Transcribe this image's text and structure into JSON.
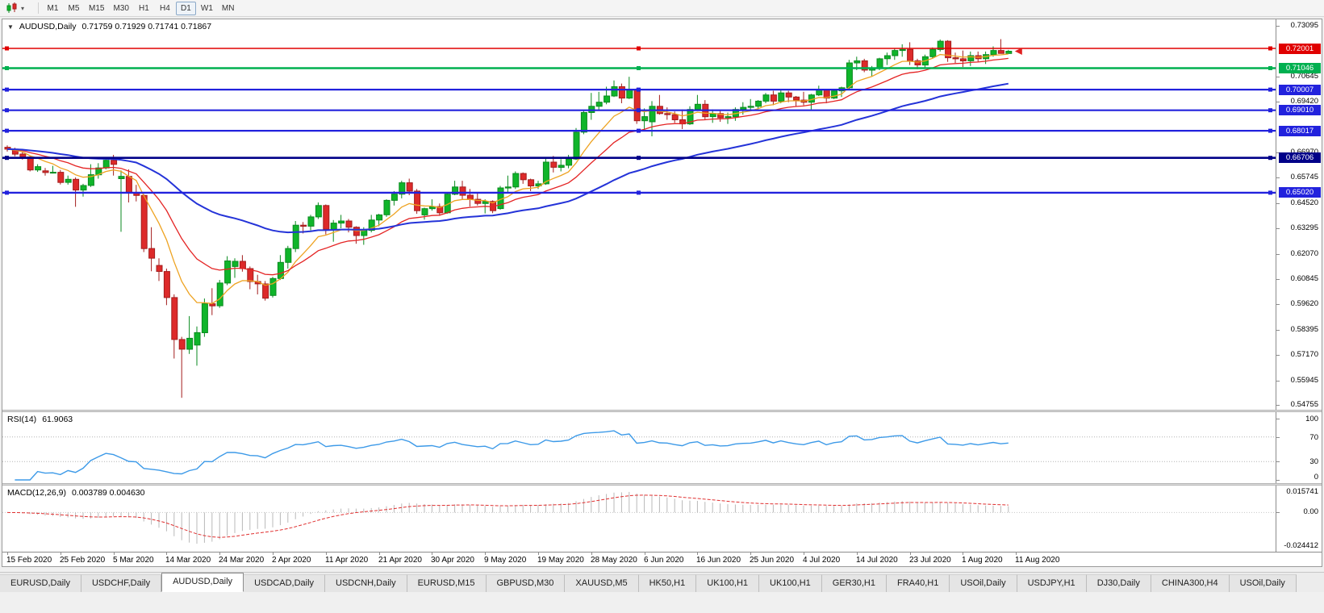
{
  "toolbar": {
    "timeframes": [
      "M1",
      "M5",
      "M15",
      "M30",
      "H1",
      "H4",
      "D1",
      "W1",
      "MN"
    ],
    "active_timeframe": "D1"
  },
  "chart": {
    "title": "AUDUSD,Daily",
    "ohlc_text": "0.71759  0.71929  0.71741  0.71867",
    "open": "0.71759",
    "high": "0.71929",
    "low": "0.71741",
    "close": "0.71867"
  },
  "price_axis": {
    "ticks": [
      "0.73095",
      "0.70645",
      "0.69420",
      "0.66970",
      "0.65745",
      "0.64520",
      "0.63295",
      "0.62070",
      "0.60845",
      "0.59620",
      "0.58395",
      "0.57170",
      "0.55945",
      "0.54755"
    ]
  },
  "chart_data": {
    "type": "candlestick",
    "symbol": "AUDUSD",
    "period": "Daily",
    "ylim": [
      0.54755,
      0.73095
    ],
    "x_label_every": 7,
    "x_labels": [
      "15 Feb 2020",
      "25 Feb 2020",
      "5 Mar 2020",
      "14 Mar 2020",
      "24 Mar 2020",
      "2 Apr 2020",
      "11 Apr 2020",
      "21 Apr 2020",
      "30 Apr 2020",
      "9 May 2020",
      "19 May 2020",
      "28 May 2020",
      "6 Jun 2020",
      "16 Jun 2020",
      "25 Jun 2020",
      "4 Jul 2020",
      "14 Jul 2020",
      "23 Jul 2020",
      "1 Aug 2020",
      "11 Aug 2020"
    ],
    "colors": {
      "up": "#0fb52a",
      "up_stroke": "#0a8a1f",
      "down": "#dd2a2a",
      "down_stroke": "#a31d1d"
    },
    "moving_averages": [
      {
        "period": 8,
        "color": "#eea322",
        "width": 1.3
      },
      {
        "period": 17,
        "color": "#e42424",
        "width": 1.3
      },
      {
        "period": 48,
        "color": "#2433d8",
        "width": 2
      }
    ],
    "horizontal_lines": [
      {
        "price": 0.72001,
        "label": "0.72001",
        "color": "#e00000",
        "width": 1.4
      },
      {
        "price": 0.71046,
        "label": "0.71046",
        "color": "#00b050",
        "width": 2.4
      },
      {
        "price": 0.70007,
        "label": "0.70007",
        "color": "#2222dd",
        "width": 2.2
      },
      {
        "price": 0.6901,
        "label": "0.69010",
        "color": "#2222dd",
        "width": 2.2
      },
      {
        "price": 0.68017,
        "label": "0.68017",
        "color": "#2222dd",
        "width": 2.2
      },
      {
        "price": 0.66706,
        "label": "0.66706",
        "color": "#000088",
        "width": 2.6
      },
      {
        "price": 0.6502,
        "label": "0.65020",
        "color": "#2222dd",
        "width": 2.4
      }
    ],
    "price_marker": {
      "price": 0.71867,
      "color": "#e02020"
    },
    "ohlc": [
      [
        0.6722,
        0.6731,
        0.6701,
        0.6713
      ],
      [
        0.6713,
        0.672,
        0.6678,
        0.6689
      ],
      [
        0.6689,
        0.67,
        0.6662,
        0.6675
      ],
      [
        0.6675,
        0.6678,
        0.6605,
        0.6612
      ],
      [
        0.6612,
        0.664,
        0.6603,
        0.6628
      ],
      [
        0.6608,
        0.6622,
        0.6585,
        0.66
      ],
      [
        0.66,
        0.6632,
        0.6595,
        0.6601
      ],
      [
        0.6601,
        0.6612,
        0.6542,
        0.6552
      ],
      [
        0.6552,
        0.6585,
        0.6541,
        0.6567
      ],
      [
        0.6567,
        0.6576,
        0.6434,
        0.6515
      ],
      [
        0.6515,
        0.6545,
        0.6483,
        0.6537
      ],
      [
        0.6537,
        0.664,
        0.653,
        0.6589
      ],
      [
        0.6589,
        0.6645,
        0.657,
        0.6622
      ],
      [
        0.6622,
        0.667,
        0.6615,
        0.6659
      ],
      [
        0.6659,
        0.6685,
        0.6585,
        0.6639
      ],
      [
        0.657,
        0.661,
        0.6313,
        0.6581
      ],
      [
        0.6581,
        0.6615,
        0.6455,
        0.6501
      ],
      [
        0.6501,
        0.654,
        0.646,
        0.6489
      ],
      [
        0.6489,
        0.6495,
        0.6215,
        0.6232
      ],
      [
        0.6232,
        0.6335,
        0.6122,
        0.6185
      ],
      [
        0.615,
        0.6185,
        0.6075,
        0.6121
      ],
      [
        0.6121,
        0.6135,
        0.5958,
        0.5995
      ],
      [
        0.5995,
        0.601,
        0.57,
        0.5792
      ],
      [
        0.5792,
        0.5805,
        0.551,
        0.5745
      ],
      [
        0.5745,
        0.5905,
        0.5722,
        0.5798
      ],
      [
        0.5765,
        0.5855,
        0.5665,
        0.5825
      ],
      [
        0.5825,
        0.599,
        0.5805,
        0.5965
      ],
      [
        0.5965,
        0.604,
        0.591,
        0.5955
      ],
      [
        0.5955,
        0.608,
        0.5945,
        0.6065
      ],
      [
        0.6065,
        0.6195,
        0.6055,
        0.6172
      ],
      [
        0.6145,
        0.6185,
        0.609,
        0.617
      ],
      [
        0.617,
        0.62,
        0.612,
        0.6135
      ],
      [
        0.6135,
        0.6145,
        0.6035,
        0.6072
      ],
      [
        0.6072,
        0.6105,
        0.601,
        0.6061
      ],
      [
        0.6061,
        0.6075,
        0.598,
        0.5992
      ],
      [
        0.6005,
        0.6095,
        0.5995,
        0.6087
      ],
      [
        0.6087,
        0.62,
        0.608,
        0.6165
      ],
      [
        0.6165,
        0.6245,
        0.6135,
        0.6232
      ],
      [
        0.6232,
        0.6365,
        0.6215,
        0.6345
      ],
      [
        0.6345,
        0.636,
        0.6305,
        0.634
      ],
      [
        0.634,
        0.6395,
        0.632,
        0.6385
      ],
      [
        0.6385,
        0.6455,
        0.6375,
        0.644
      ],
      [
        0.644,
        0.6445,
        0.63,
        0.6325
      ],
      [
        0.6325,
        0.637,
        0.6265,
        0.6355
      ],
      [
        0.6355,
        0.6395,
        0.633,
        0.6365
      ],
      [
        0.6365,
        0.6375,
        0.631,
        0.6335
      ],
      [
        0.6335,
        0.634,
        0.6255,
        0.6295
      ],
      [
        0.6295,
        0.6335,
        0.625,
        0.632
      ],
      [
        0.632,
        0.6395,
        0.631,
        0.637
      ],
      [
        0.637,
        0.64,
        0.634,
        0.6395
      ],
      [
        0.6395,
        0.647,
        0.6385,
        0.6465
      ],
      [
        0.6465,
        0.651,
        0.644,
        0.6495
      ],
      [
        0.6495,
        0.656,
        0.6475,
        0.655
      ],
      [
        0.655,
        0.657,
        0.649,
        0.651
      ],
      [
        0.651,
        0.652,
        0.64,
        0.6415
      ],
      [
        0.6395,
        0.643,
        0.6372,
        0.6425
      ],
      [
        0.6425,
        0.647,
        0.6415,
        0.6435
      ],
      [
        0.6435,
        0.645,
        0.639,
        0.6405
      ],
      [
        0.6405,
        0.6505,
        0.64,
        0.6495
      ],
      [
        0.6495,
        0.656,
        0.649,
        0.653
      ],
      [
        0.653,
        0.656,
        0.647,
        0.649
      ],
      [
        0.649,
        0.652,
        0.6435,
        0.647
      ],
      [
        0.647,
        0.65,
        0.644,
        0.645
      ],
      [
        0.645,
        0.647,
        0.6402,
        0.646
      ],
      [
        0.646,
        0.6465,
        0.6403,
        0.6415
      ],
      [
        0.6425,
        0.6535,
        0.642,
        0.6525
      ],
      [
        0.6525,
        0.6585,
        0.6505,
        0.653
      ],
      [
        0.653,
        0.6605,
        0.652,
        0.6595
      ],
      [
        0.6595,
        0.66,
        0.6545,
        0.6565
      ],
      [
        0.6565,
        0.657,
        0.651,
        0.6535
      ],
      [
        0.6535,
        0.656,
        0.652,
        0.6545
      ],
      [
        0.6545,
        0.6675,
        0.654,
        0.665
      ],
      [
        0.665,
        0.668,
        0.66,
        0.6625
      ],
      [
        0.6625,
        0.6665,
        0.6605,
        0.6635
      ],
      [
        0.6635,
        0.6685,
        0.662,
        0.6665
      ],
      [
        0.6665,
        0.6815,
        0.666,
        0.6795
      ],
      [
        0.6795,
        0.69,
        0.6785,
        0.689
      ],
      [
        0.689,
        0.6985,
        0.6855,
        0.692
      ],
      [
        0.692,
        0.699,
        0.69,
        0.694
      ],
      [
        0.694,
        0.7015,
        0.693,
        0.697
      ],
      [
        0.697,
        0.7045,
        0.6965,
        0.7015
      ],
      [
        0.7015,
        0.703,
        0.6935,
        0.696
      ],
      [
        0.696,
        0.7063,
        0.6955,
        0.7
      ],
      [
        0.7,
        0.701,
        0.6835,
        0.685
      ],
      [
        0.685,
        0.691,
        0.68,
        0.687
      ],
      [
        0.6845,
        0.6945,
        0.6775,
        0.692
      ],
      [
        0.692,
        0.6975,
        0.688,
        0.6885
      ],
      [
        0.6885,
        0.6915,
        0.6855,
        0.688
      ],
      [
        0.688,
        0.6895,
        0.684,
        0.6855
      ],
      [
        0.6855,
        0.6905,
        0.681,
        0.6835
      ],
      [
        0.6835,
        0.692,
        0.683,
        0.6905
      ],
      [
        0.6905,
        0.6975,
        0.69,
        0.693
      ],
      [
        0.693,
        0.695,
        0.6855,
        0.687
      ],
      [
        0.687,
        0.6905,
        0.684,
        0.6885
      ],
      [
        0.6885,
        0.69,
        0.6845,
        0.6865
      ],
      [
        0.6865,
        0.689,
        0.6835,
        0.687
      ],
      [
        0.687,
        0.6915,
        0.685,
        0.6905
      ],
      [
        0.6905,
        0.694,
        0.688,
        0.6915
      ],
      [
        0.6915,
        0.6955,
        0.69,
        0.692
      ],
      [
        0.692,
        0.695,
        0.6905,
        0.6945
      ],
      [
        0.6945,
        0.6985,
        0.6935,
        0.6975
      ],
      [
        0.6975,
        0.6995,
        0.6925,
        0.6945
      ],
      [
        0.6945,
        0.7,
        0.6935,
        0.6985
      ],
      [
        0.6985,
        0.6995,
        0.694,
        0.6965
      ],
      [
        0.6965,
        0.697,
        0.692,
        0.695
      ],
      [
        0.695,
        0.699,
        0.6925,
        0.694
      ],
      [
        0.694,
        0.698,
        0.6905,
        0.6975
      ],
      [
        0.6975,
        0.702,
        0.697,
        0.7
      ],
      [
        0.7,
        0.7005,
        0.6935,
        0.696
      ],
      [
        0.696,
        0.7,
        0.6955,
        0.6995
      ],
      [
        0.6995,
        0.7015,
        0.6965,
        0.701
      ],
      [
        0.701,
        0.7145,
        0.7005,
        0.713
      ],
      [
        0.713,
        0.716,
        0.7095,
        0.714
      ],
      [
        0.714,
        0.715,
        0.7085,
        0.7095
      ],
      [
        0.7095,
        0.7115,
        0.7065,
        0.7105
      ],
      [
        0.7105,
        0.7155,
        0.7095,
        0.715
      ],
      [
        0.715,
        0.718,
        0.712,
        0.7165
      ],
      [
        0.7165,
        0.72,
        0.7145,
        0.719
      ],
      [
        0.719,
        0.722,
        0.716,
        0.7195
      ],
      [
        0.7195,
        0.723,
        0.712,
        0.714
      ],
      [
        0.714,
        0.715,
        0.71,
        0.712
      ],
      [
        0.712,
        0.717,
        0.7105,
        0.716
      ],
      [
        0.716,
        0.7205,
        0.715,
        0.7195
      ],
      [
        0.7195,
        0.7243,
        0.7185,
        0.7235
      ],
      [
        0.7235,
        0.724,
        0.7135,
        0.7155
      ],
      [
        0.7155,
        0.718,
        0.713,
        0.715
      ],
      [
        0.715,
        0.719,
        0.711,
        0.714
      ],
      [
        0.714,
        0.7185,
        0.7115,
        0.7165
      ],
      [
        0.7165,
        0.7185,
        0.7135,
        0.715
      ],
      [
        0.715,
        0.7185,
        0.7125,
        0.717
      ],
      [
        0.717,
        0.721,
        0.716,
        0.719
      ],
      [
        0.719,
        0.7245,
        0.7175,
        0.7176
      ],
      [
        0.71759,
        0.71929,
        0.71741,
        0.71867
      ]
    ]
  },
  "rsi": {
    "label": "RSI(14)",
    "value": "61.9063",
    "period": 14,
    "line_color": "#3d9ae8",
    "axis_ticks": [
      100,
      70,
      30,
      0
    ],
    "levels": [
      70,
      30
    ]
  },
  "macd": {
    "label": "MACD(12,26,9)",
    "values": "0.003789 0.004630",
    "fast": 12,
    "slow": 26,
    "signal_period": 9,
    "histogram_color": "#b8b8b8",
    "signal_color": "#e03030",
    "axis_top": "0.015741",
    "axis_zero": "0.00",
    "axis_bottom": "-0.024412",
    "range": [
      -0.024412,
      0.015741
    ]
  },
  "tabs": {
    "active_index": 2,
    "items": [
      "EURUSD,Daily",
      "USDCHF,Daily",
      "AUDUSD,Daily",
      "USDCAD,Daily",
      "USDCNH,Daily",
      "EURUSD,M15",
      "GBPUSD,M30",
      "XAUUSD,M5",
      "HK50,H1",
      "UK100,H1",
      "UK100,H1",
      "GER30,H1",
      "FRA40,H1",
      "USOil,Daily",
      "USDJPY,H1",
      "DJ30,Daily",
      "CHINA300,H4",
      "USOil,Daily"
    ]
  }
}
